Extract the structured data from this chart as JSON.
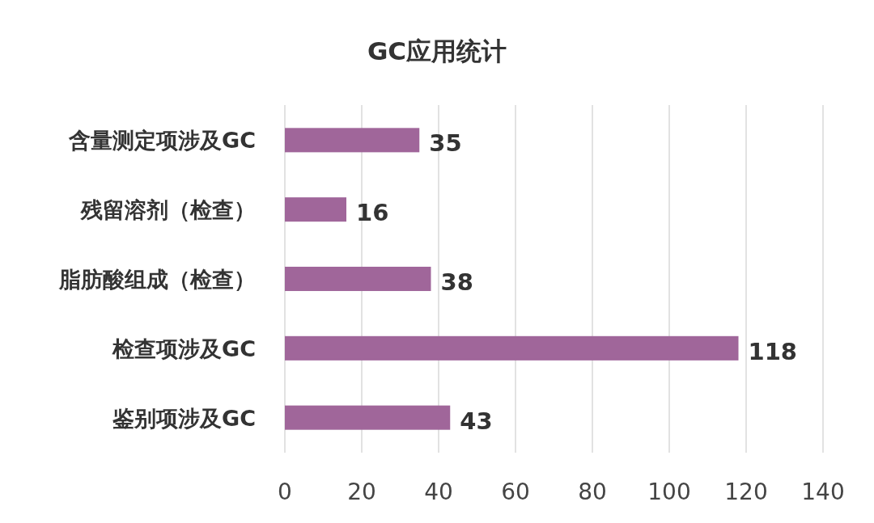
{
  "chart_data": {
    "type": "bar",
    "title": "GC应用统计",
    "orientation": "horizontal",
    "categories": [
      "含量测定项涉及GC",
      "残留溶剂（检查）",
      "脂肪酸组成（检查）",
      "检查项涉及GC",
      "鉴别项涉及GC"
    ],
    "values": [
      35,
      16,
      38,
      118,
      43
    ],
    "color": "#a0669a",
    "xlim": [
      0,
      140
    ],
    "xticks": [
      0,
      20,
      40,
      60,
      80,
      100,
      120,
      140
    ],
    "grid": "x",
    "data_labels": true
  }
}
